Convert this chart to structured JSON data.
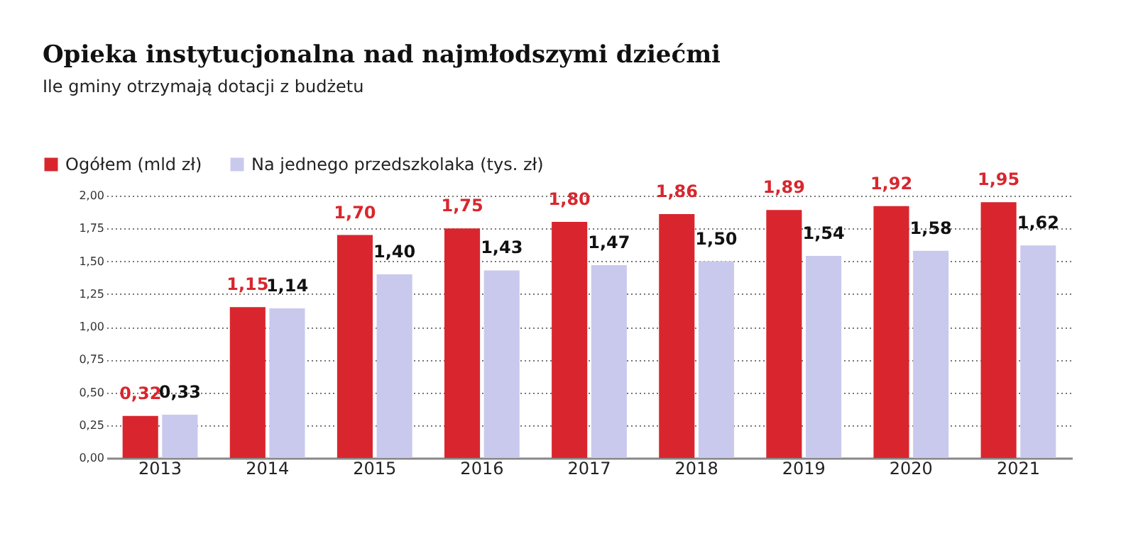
{
  "chart_data": {
    "type": "bar",
    "title": "Opieka instytucjonalna nad najmłodszymi dziećmi",
    "subtitle": "Ile gminy otrzymają dotacji z budżetu",
    "categories": [
      "2013",
      "2014",
      "2015",
      "2016",
      "2017",
      "2018",
      "2019",
      "2020",
      "2021"
    ],
    "series": [
      {
        "name": "Ogółem (mld zł)",
        "color": "#d9262e",
        "values": [
          0.32,
          1.15,
          1.7,
          1.75,
          1.8,
          1.86,
          1.89,
          1.92,
          1.95
        ],
        "value_labels": [
          "0,32",
          "1,15",
          "1,70",
          "1,75",
          "1,80",
          "1,86",
          "1,89",
          "1,92",
          "1,95"
        ]
      },
      {
        "name": "Na jednego przedszkolaka  (tys. zł)",
        "color": "#c9c9ee",
        "values": [
          0.33,
          1.14,
          1.4,
          1.43,
          1.47,
          1.5,
          1.54,
          1.58,
          1.62
        ],
        "value_labels": [
          "0,33",
          "1,14",
          "1,40",
          "1,43",
          "1,47",
          "1,50",
          "1,54",
          "1,58",
          "1,62"
        ]
      }
    ],
    "ylim": [
      0,
      2.0
    ],
    "yticks": [
      {
        "value": 0,
        "label": "0,00"
      },
      {
        "value": 0.25,
        "label": "0,25"
      },
      {
        "value": 0.5,
        "label": "0,50"
      },
      {
        "value": 0.75,
        "label": "0,75"
      },
      {
        "value": 1.0,
        "label": "1,00"
      },
      {
        "value": 1.25,
        "label": "1,25"
      },
      {
        "value": 1.5,
        "label": "1,50"
      },
      {
        "value": 1.75,
        "label": "1,75"
      },
      {
        "value": 2.0,
        "label": "2,00"
      }
    ],
    "grid": "y",
    "legend": "top left"
  }
}
